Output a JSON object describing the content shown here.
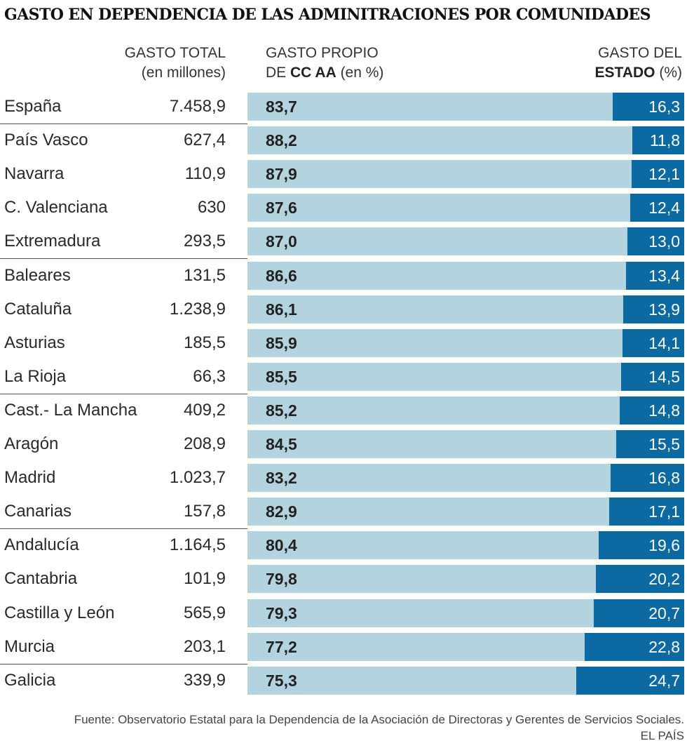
{
  "title": "GASTO EN DEPENDENCIA DE LAS ADMINITRACIONES POR COMUNIDADES",
  "headers": {
    "total_line1": "GASTO TOTAL",
    "total_line2": "(en millones)",
    "cc_line1": "GASTO PROPIO",
    "cc_line2_pre": "DE ",
    "cc_line2_bold": "CC AA",
    "cc_line2_post": " (en %)",
    "estado_line1": "GASTO DEL",
    "estado_line2_bold": "ESTADO",
    "estado_line2_post": " (%)"
  },
  "colors": {
    "cc": "#b3d3df",
    "estado": "#0a6aa1"
  },
  "chart_data": {
    "type": "bar",
    "stacked": true,
    "orientation": "horizontal",
    "categories": [
      "España",
      "País Vasco",
      "Navarra",
      "C. Valenciana",
      "Extremadura",
      "Baleares",
      "Cataluña",
      "Asturias",
      "La Rioja",
      "Cast.- La Mancha",
      "Aragón",
      "Madrid",
      "Canarias",
      "Andalucía",
      "Cantabria",
      "Castilla y León",
      "Murcia",
      "Galicia"
    ],
    "gasto_total": [
      "7.458,9",
      "627,4",
      "110,9",
      "630",
      "293,5",
      "131,5",
      "1.238,9",
      "185,5",
      "66,3",
      "409,2",
      "208,9",
      "1.023,7",
      "157,8",
      "1.164,5",
      "101,9",
      "565,9",
      "203,1",
      "339,9"
    ],
    "series": [
      {
        "name": "GASTO PROPIO DE CC AA (en %)",
        "values": [
          83.7,
          88.2,
          87.9,
          87.6,
          87.0,
          86.6,
          86.1,
          85.9,
          85.5,
          85.2,
          84.5,
          83.2,
          82.9,
          80.4,
          79.8,
          79.3,
          77.2,
          75.3
        ]
      },
      {
        "name": "GASTO DEL ESTADO (%)",
        "values": [
          16.3,
          11.8,
          12.1,
          12.4,
          13.0,
          13.4,
          13.9,
          14.1,
          14.5,
          14.8,
          15.5,
          16.8,
          17.1,
          19.6,
          20.2,
          20.7,
          22.8,
          24.7
        ]
      }
    ],
    "xlim": [
      0,
      100
    ]
  },
  "source": "Fuente: Observatorio Estatal para la Dependencia de la Asociación de Directoras y Gerentes de Servicios Sociales.",
  "brand": "EL PAÍS"
}
